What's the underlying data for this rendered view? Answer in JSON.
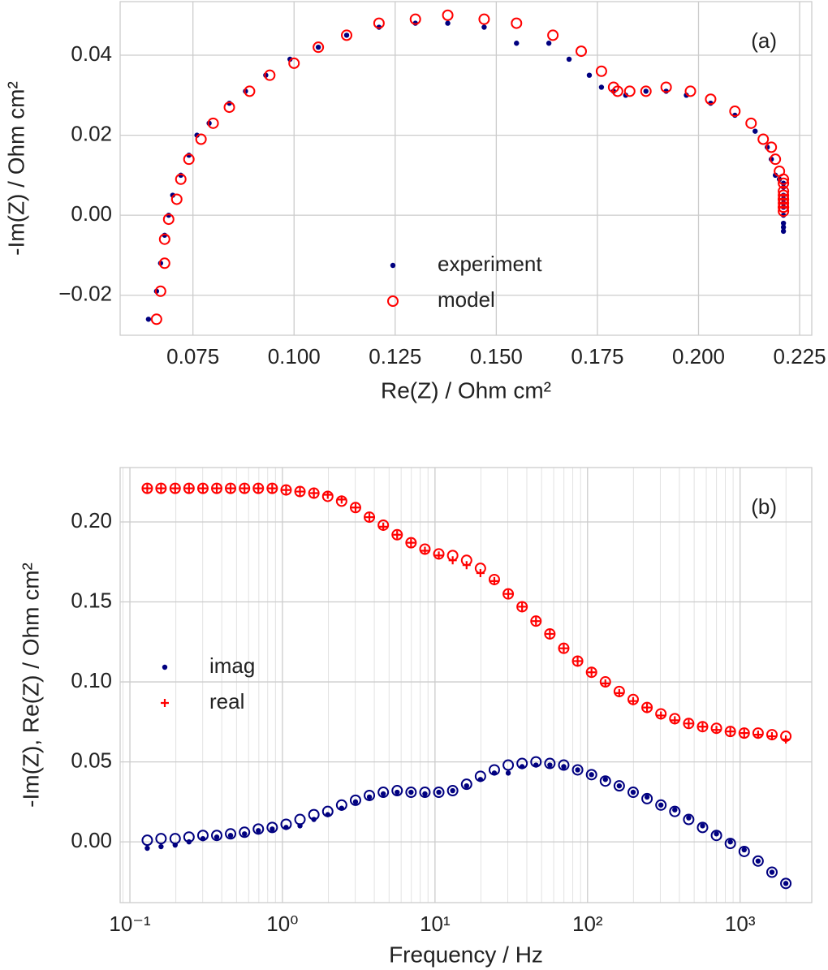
{
  "chart_data": [
    {
      "type": "scatter",
      "xlabel": "Re(Z) / Ohm cm²",
      "ylabel": "-Im(Z) / Ohm cm²",
      "annotation": "(a)",
      "xlim": [
        0.057,
        0.228
      ],
      "xticks": [
        0.075,
        {
          "value": 0.1,
          "label": "0.100"
        },
        0.125,
        {
          "value": 0.15,
          "label": "0.150"
        },
        0.175,
        {
          "value": 0.2,
          "label": "0.200"
        },
        0.225
      ],
      "ylim": [
        -0.03,
        0.0534
      ],
      "yticks": [
        {
          "value": -0.02,
          "label": "−0.02"
        },
        {
          "value": 0,
          "label": "0.00"
        },
        0.02,
        0.04
      ],
      "grid": true,
      "legend": "lower center",
      "series": [
        {
          "name": "experiment",
          "color": "#000080",
          "marker": "dot",
          "x": [
            0.221,
            0.221,
            0.221,
            0.221,
            0.221,
            0.221,
            0.221,
            0.221,
            0.221,
            0.221,
            0.22,
            0.219,
            0.218,
            0.217,
            0.214,
            0.209,
            0.203,
            0.197,
            0.192,
            0.187,
            0.182,
            0.179,
            0.176,
            0.173,
            0.168,
            0.163,
            0.155,
            0.147,
            0.138,
            0.13,
            0.121,
            0.113,
            0.106,
            0.099,
            0.093,
            0.088,
            0.084,
            0.079,
            0.076,
            0.074,
            0.072,
            0.07,
            0.069,
            0.068,
            0.067,
            0.066,
            0.064
          ],
          "values": [
            -0.004,
            -0.003,
            -0.002,
            0,
            0.002,
            0.003,
            0.004,
            0.005,
            0.007,
            0.008,
            0.009,
            0.01,
            0.014,
            0.017,
            0.021,
            0.025,
            0.028,
            0.03,
            0.031,
            0.031,
            0.03,
            0.031,
            0.032,
            0.035,
            0.039,
            0.043,
            0.043,
            0.047,
            0.048,
            0.048,
            0.047,
            0.045,
            0.042,
            0.039,
            0.035,
            0.031,
            0.028,
            0.023,
            0.02,
            0.015,
            0.01,
            0.005,
            0,
            -0.005,
            -0.012,
            -0.019,
            -0.026
          ]
        },
        {
          "name": "model",
          "color": "#ff0000",
          "marker": "circle",
          "x": [
            0.221,
            0.221,
            0.221,
            0.221,
            0.221,
            0.221,
            0.221,
            0.221,
            0.221,
            0.221,
            0.22,
            0.219,
            0.218,
            0.216,
            0.213,
            0.209,
            0.203,
            0.198,
            0.192,
            0.187,
            0.183,
            0.18,
            0.179,
            0.176,
            0.171,
            0.164,
            0.155,
            0.147,
            0.138,
            0.13,
            0.121,
            0.113,
            0.106,
            0.1,
            0.094,
            0.089,
            0.084,
            0.08,
            0.077,
            0.074,
            0.072,
            0.071,
            0.069,
            0.068,
            0.068,
            0.067,
            0.066
          ],
          "values": [
            0.001,
            0.002,
            0.002,
            0.003,
            0.004,
            0.004,
            0.005,
            0.006,
            0.008,
            0.009,
            0.011,
            0.014,
            0.017,
            0.019,
            0.023,
            0.026,
            0.029,
            0.031,
            0.032,
            0.031,
            0.031,
            0.031,
            0.032,
            0.036,
            0.041,
            0.045,
            0.048,
            0.049,
            0.05,
            0.049,
            0.048,
            0.045,
            0.042,
            0.038,
            0.035,
            0.031,
            0.027,
            0.023,
            0.019,
            0.014,
            0.009,
            0.004,
            -0.001,
            -0.006,
            -0.012,
            -0.019,
            -0.026
          ]
        }
      ]
    },
    {
      "type": "scatter",
      "xlabel": "Frequency / Hz",
      "ylabel": "-Im(Z), Re(Z) / Ohm cm²",
      "annotation": "(b)",
      "xscale": "log",
      "xlim": [
        0.0863,
        2950
      ],
      "xticks": [
        {
          "value": 0.1,
          "label": "10⁻¹"
        },
        {
          "value": 1,
          "label": "10⁰"
        },
        {
          "value": 10,
          "label": "10¹"
        },
        {
          "value": 100,
          "label": "10²"
        },
        {
          "value": 1000,
          "label": "10³"
        }
      ],
      "ylim": [
        -0.038,
        0.234
      ],
      "yticks": [
        {
          "value": 0,
          "label": "0.00"
        },
        0.05,
        {
          "value": 0.1,
          "label": "0.10"
        },
        0.15,
        {
          "value": 0.2,
          "label": "0.20"
        }
      ],
      "grid": true,
      "minor_grid": true,
      "legend": "center left",
      "x": [
        0.13,
        0.16,
        0.198,
        0.244,
        0.301,
        0.371,
        0.457,
        0.564,
        0.695,
        0.857,
        1.057,
        1.303,
        1.607,
        1.982,
        2.443,
        3.013,
        3.715,
        4.581,
        5.649,
        6.966,
        8.59,
        10.59,
        13.06,
        16.11,
        19.86,
        24.49,
        30.2,
        37.24,
        45.92,
        56.62,
        69.82,
        86.1,
        106.2,
        130.9,
        161.4,
        199.1,
        245.5,
        302.7,
        373.3,
        460.3,
        567.5,
        699.8,
        863.0,
        1064,
        1312,
        1618,
        1995
      ],
      "series": [
        {
          "name": "imag",
          "color": "#000080",
          "marker": "dot",
          "values": [
            -0.004,
            -0.003,
            -0.002,
            0,
            0.002,
            0.003,
            0.004,
            0.005,
            0.007,
            0.008,
            0.009,
            0.01,
            0.014,
            0.017,
            0.021,
            0.025,
            0.028,
            0.03,
            0.031,
            0.031,
            0.03,
            0.031,
            0.032,
            0.035,
            0.039,
            0.043,
            0.043,
            0.047,
            0.048,
            0.048,
            0.047,
            0.045,
            0.042,
            0.039,
            0.035,
            0.031,
            0.028,
            0.023,
            0.02,
            0.015,
            0.01,
            0.005,
            0,
            -0.005,
            -0.012,
            -0.019,
            -0.026
          ]
        },
        {
          "name": "real",
          "color": "#ff0000",
          "marker": "plus",
          "values": [
            0.221,
            0.221,
            0.221,
            0.221,
            0.221,
            0.221,
            0.221,
            0.221,
            0.221,
            0.221,
            0.22,
            0.219,
            0.218,
            0.217,
            0.214,
            0.209,
            0.203,
            0.197,
            0.192,
            0.187,
            0.182,
            0.179,
            0.176,
            0.173,
            0.168,
            0.163,
            0.155,
            0.147,
            0.138,
            0.13,
            0.121,
            0.113,
            0.106,
            0.099,
            0.093,
            0.088,
            0.084,
            0.079,
            0.076,
            0.074,
            0.072,
            0.07,
            0.069,
            0.068,
            0.067,
            0.066,
            0.064
          ]
        },
        {
          "color": "#000080",
          "marker": "circle",
          "values": [
            0.001,
            0.002,
            0.002,
            0.003,
            0.004,
            0.004,
            0.005,
            0.006,
            0.008,
            0.009,
            0.011,
            0.014,
            0.017,
            0.019,
            0.023,
            0.026,
            0.029,
            0.031,
            0.032,
            0.031,
            0.031,
            0.031,
            0.032,
            0.036,
            0.041,
            0.045,
            0.048,
            0.049,
            0.05,
            0.049,
            0.048,
            0.045,
            0.042,
            0.038,
            0.035,
            0.031,
            0.027,
            0.023,
            0.019,
            0.014,
            0.009,
            0.004,
            -0.001,
            -0.006,
            -0.012,
            -0.019,
            -0.026
          ]
        },
        {
          "color": "#ff0000",
          "marker": "circle",
          "values": [
            0.221,
            0.221,
            0.221,
            0.221,
            0.221,
            0.221,
            0.221,
            0.221,
            0.221,
            0.221,
            0.22,
            0.219,
            0.218,
            0.216,
            0.213,
            0.209,
            0.203,
            0.198,
            0.192,
            0.187,
            0.183,
            0.18,
            0.179,
            0.176,
            0.171,
            0.164,
            0.155,
            0.147,
            0.138,
            0.13,
            0.121,
            0.113,
            0.106,
            0.1,
            0.094,
            0.089,
            0.084,
            0.08,
            0.077,
            0.074,
            0.072,
            0.071,
            0.069,
            0.068,
            0.068,
            0.067,
            0.066
          ]
        }
      ]
    }
  ]
}
